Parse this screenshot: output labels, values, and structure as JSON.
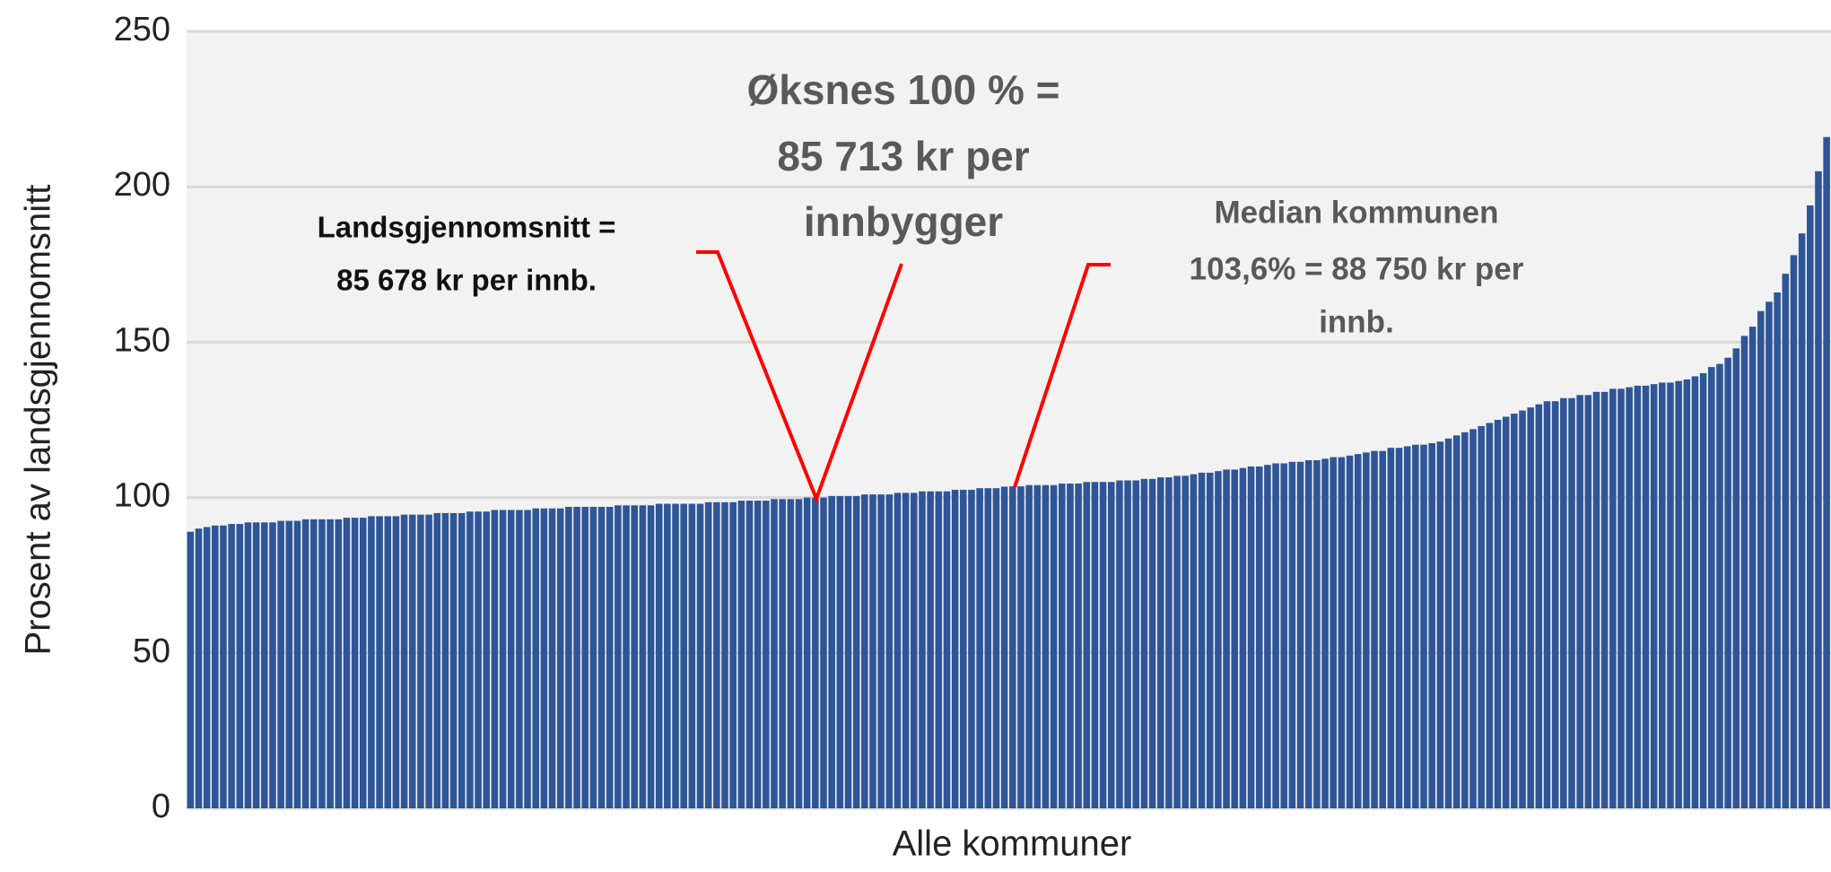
{
  "chart_data": {
    "type": "bar",
    "y_label": "Prosent av landsgjennomsnitt",
    "x_label": "Alle kommuner",
    "color": "#2e5597",
    "grid": true,
    "ylim": [
      0,
      250
    ],
    "yticks": [
      0,
      50,
      100,
      150,
      200,
      250
    ],
    "annotations": [
      {
        "lines": [
          "Øksnes 100 % =",
          "85 713 kr per",
          "innbygger"
        ]
      },
      {
        "lines": [
          "Landsgjennomsnitt =",
          "85 678 kr per innb."
        ]
      },
      {
        "lines": [
          "Median kommunen",
          "103,6% = 88 750 kr per",
          "innb."
        ]
      }
    ],
    "categories": [
      null,
      null,
      null,
      null,
      null,
      null,
      null,
      null,
      null,
      null,
      null,
      null,
      null,
      null,
      null,
      null,
      null,
      null,
      null,
      null,
      null,
      null,
      null,
      null,
      null,
      null,
      null,
      null,
      null,
      null,
      null,
      null,
      null,
      null,
      null,
      null,
      null,
      null,
      null,
      null,
      null,
      null,
      null,
      null,
      null,
      null,
      null,
      null,
      null,
      null,
      null,
      null,
      null,
      null,
      null,
      null,
      null,
      null,
      null,
      null,
      null,
      null,
      null,
      null,
      null,
      null,
      null,
      null,
      null,
      null,
      null,
      null,
      null,
      null,
      null,
      null,
      null,
      null,
      null,
      null,
      null,
      null,
      null,
      null,
      null,
      null,
      null,
      null,
      null,
      null,
      null,
      null,
      null,
      null,
      null,
      null,
      null,
      null,
      null,
      null,
      null,
      null,
      null,
      null,
      null,
      null,
      null,
      null,
      null,
      null,
      null,
      null,
      null,
      null,
      null,
      null,
      null,
      null,
      null,
      null,
      null,
      null,
      null,
      null,
      null,
      null,
      null,
      null,
      null,
      null,
      null,
      null,
      null,
      null,
      null,
      null,
      null,
      null,
      null,
      null,
      null,
      null,
      null,
      null,
      null,
      null,
      null,
      null,
      null,
      null,
      null,
      null,
      null,
      null,
      null,
      null,
      null,
      null,
      null,
      null,
      null,
      null,
      null,
      null,
      null,
      null,
      null,
      null,
      null,
      null,
      null,
      null,
      null,
      null,
      null,
      null,
      null,
      null,
      null,
      null,
      null,
      null,
      null,
      null,
      null,
      null,
      null,
      null,
      null,
      null,
      null,
      null,
      null,
      null,
      null,
      null,
      null,
      null,
      null,
      null
    ],
    "values": [
      89,
      90,
      90.5,
      91,
      91,
      91.5,
      91.5,
      92,
      92,
      92,
      92,
      92.5,
      92.5,
      92.5,
      93,
      93,
      93,
      93,
      93,
      93.5,
      93.5,
      93.5,
      94,
      94,
      94,
      94,
      94.5,
      94.5,
      94.5,
      94.5,
      95,
      95,
      95,
      95,
      95.5,
      95.5,
      95.5,
      96,
      96,
      96,
      96,
      96,
      96.5,
      96.5,
      96.5,
      96.5,
      97,
      97,
      97,
      97,
      97,
      97,
      97.5,
      97.5,
      97.5,
      97.5,
      97.5,
      98,
      98,
      98,
      98,
      98,
      98,
      98.5,
      98.5,
      98.5,
      98.5,
      99,
      99,
      99,
      99,
      99.5,
      99.5,
      99.5,
      99.5,
      100,
      100,
      100,
      100.5,
      100.5,
      100.5,
      100.5,
      101,
      101,
      101,
      101,
      101.5,
      101.5,
      101.5,
      102,
      102,
      102,
      102,
      102.5,
      102.5,
      102.5,
      103,
      103,
      103,
      103.5,
      103.6,
      103.6,
      104,
      104,
      104,
      104,
      104.5,
      104.5,
      104.5,
      105,
      105,
      105,
      105,
      105.5,
      105.5,
      105.5,
      106,
      106,
      106.5,
      106.5,
      107,
      107,
      107.5,
      108,
      108,
      108.5,
      109,
      109,
      109.5,
      110,
      110,
      110.5,
      111,
      111,
      111.5,
      111.5,
      112,
      112,
      112.5,
      113,
      113,
      113.5,
      114,
      114.5,
      115,
      115,
      116,
      116,
      116.5,
      117,
      117,
      117.5,
      118,
      119,
      120,
      121,
      122,
      123,
      124,
      125,
      126,
      127,
      128,
      129,
      130,
      131,
      131,
      132,
      132,
      133,
      133,
      134,
      134,
      135,
      135,
      135.5,
      136,
      136,
      136.5,
      137,
      137,
      137.5,
      138,
      139,
      140,
      142,
      143,
      145,
      148,
      152,
      155,
      160,
      163,
      166,
      172,
      178,
      185,
      194,
      205,
      216
    ]
  }
}
